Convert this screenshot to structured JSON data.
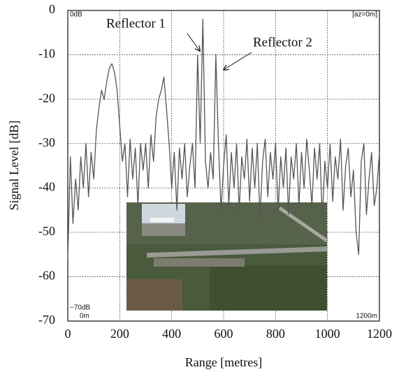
{
  "chart_data": {
    "type": "line",
    "x_label": "Range [metres]",
    "y_label": "Signal Level [dB]",
    "annotations": [
      "Reflector 1",
      "Reflector 2",
      "0dB",
      "[az=0m]",
      "−70dB",
      "0m",
      "1200m"
    ],
    "x": [
      0,
      10,
      20,
      30,
      40,
      50,
      60,
      70,
      80,
      90,
      100,
      110,
      120,
      130,
      140,
      150,
      160,
      170,
      180,
      190,
      200,
      210,
      220,
      230,
      240,
      250,
      260,
      270,
      280,
      290,
      300,
      310,
      320,
      330,
      340,
      350,
      360,
      370,
      380,
      390,
      400,
      410,
      420,
      430,
      440,
      450,
      460,
      470,
      480,
      490,
      500,
      510,
      520,
      530,
      540,
      550,
      560,
      570,
      580,
      590,
      600,
      610,
      620,
      630,
      640,
      650,
      660,
      670,
      680,
      690,
      700,
      710,
      720,
      730,
      740,
      750,
      760,
      770,
      780,
      790,
      800,
      810,
      820,
      830,
      840,
      850,
      860,
      870,
      880,
      890,
      900,
      910,
      920,
      930,
      940,
      950,
      960,
      970,
      980,
      990,
      1000,
      1010,
      1020,
      1030,
      1040,
      1050,
      1060,
      1070,
      1080,
      1090,
      1100,
      1110,
      1120,
      1130,
      1140,
      1150,
      1160,
      1170,
      1180,
      1190,
      1200
    ],
    "series": [
      {
        "color": "#555555",
        "values": [
          -56,
          -33,
          -48,
          -38,
          -45,
          -33,
          -40,
          -30,
          -42,
          -32,
          -38,
          -27,
          -22,
          -18,
          -20,
          -16,
          -13,
          -12,
          -14,
          -18,
          -26,
          -34,
          -30,
          -42,
          -29,
          -38,
          -31,
          -44,
          -30,
          -36,
          -30,
          -40,
          -28,
          -34,
          -24,
          -20,
          -18,
          -15,
          -22,
          -30,
          -40,
          -32,
          -45,
          -31,
          -38,
          -30,
          -42,
          -35,
          -30,
          -40,
          -10,
          -30,
          -2,
          -34,
          -40,
          -32,
          -38,
          -10,
          -30,
          -45,
          -35,
          -28,
          -44,
          -32,
          -40,
          -30,
          -45,
          -33,
          -38,
          -29,
          -43,
          -31,
          -40,
          -30,
          -47,
          -34,
          -29,
          -42,
          -32,
          -38,
          -30,
          -45,
          -33,
          -40,
          -31,
          -46,
          -33,
          -38,
          -30,
          -44,
          -32,
          -40,
          -29,
          -36,
          -44,
          -31,
          -38,
          -30,
          -47,
          -34,
          -40,
          -30,
          -43,
          -33,
          -38,
          -29,
          -45,
          -35,
          -31,
          -42,
          -36,
          -50,
          -55,
          -34,
          -30,
          -46,
          -38,
          -32,
          -44,
          -40,
          -32
        ]
      }
    ],
    "xlim": [
      0,
      1200
    ],
    "xticks": [
      0,
      200,
      400,
      600,
      800,
      1000,
      1200
    ],
    "ylim": [
      -70,
      0
    ],
    "yticks": [
      0,
      -10,
      -20,
      -30,
      -40,
      -50,
      -60,
      -70
    ],
    "grid": true
  }
}
